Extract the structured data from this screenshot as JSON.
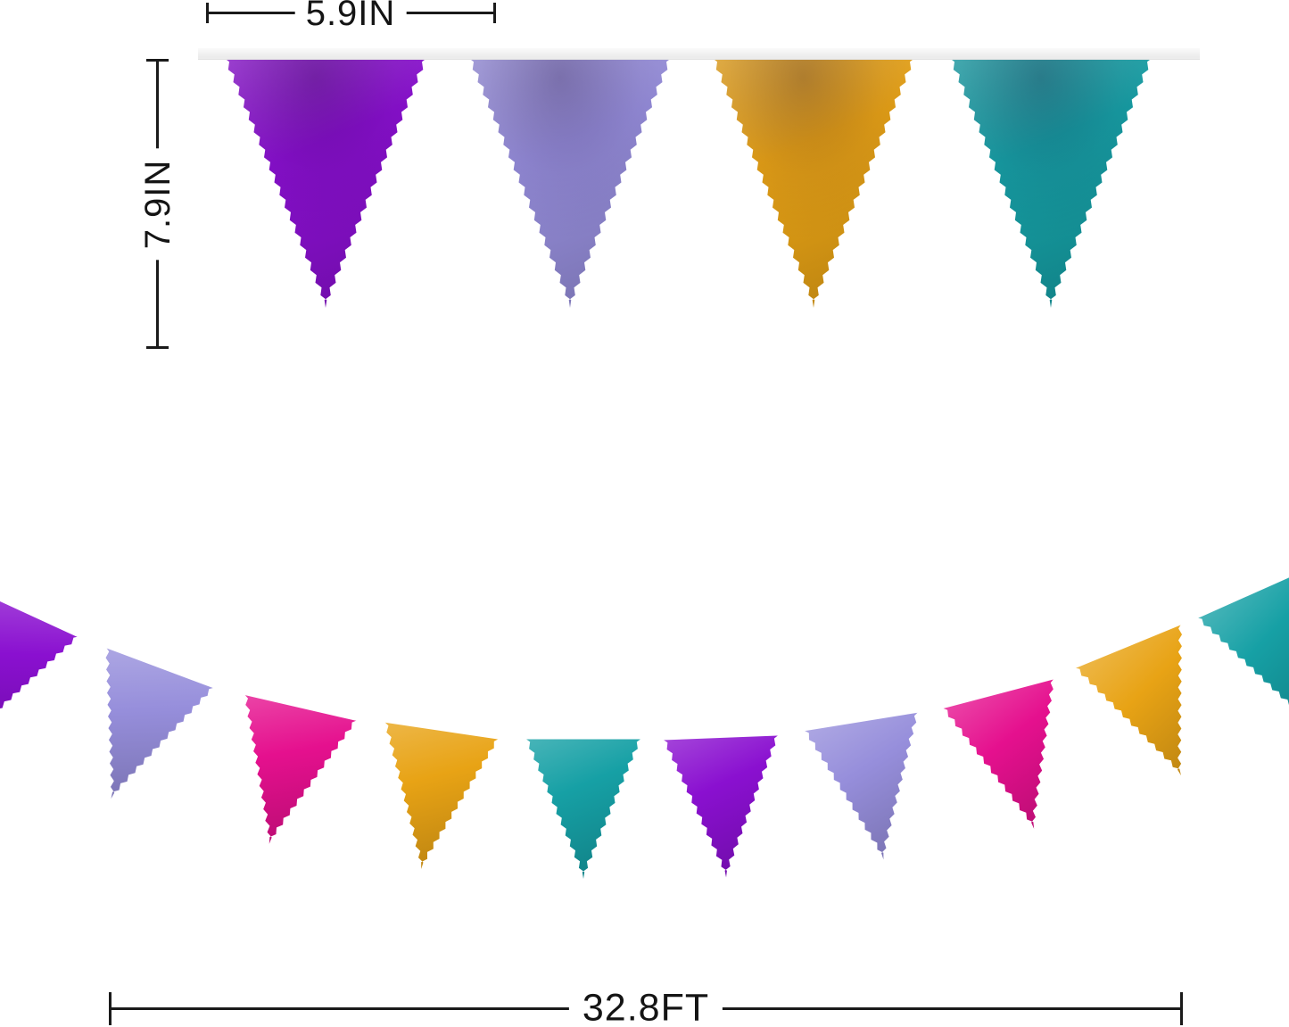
{
  "measurements": {
    "flag_width": "5.9IN",
    "flag_height": "7.9IN",
    "banner_length": "32.8FT"
  },
  "colors": {
    "purple": "#8a10d0",
    "lavender": "#968edb",
    "magenta": "#e5108e",
    "gold": "#e8a315",
    "teal": "#16a0a5",
    "ribbon": "#ececec",
    "measure_line": "#1a1a1a"
  },
  "top_row": [
    "purple",
    "lavender",
    "gold",
    "teal"
  ],
  "garland_row": [
    "purple",
    "lavender",
    "magenta",
    "gold",
    "teal",
    "purple",
    "lavender",
    "magenta",
    "gold",
    "teal"
  ]
}
